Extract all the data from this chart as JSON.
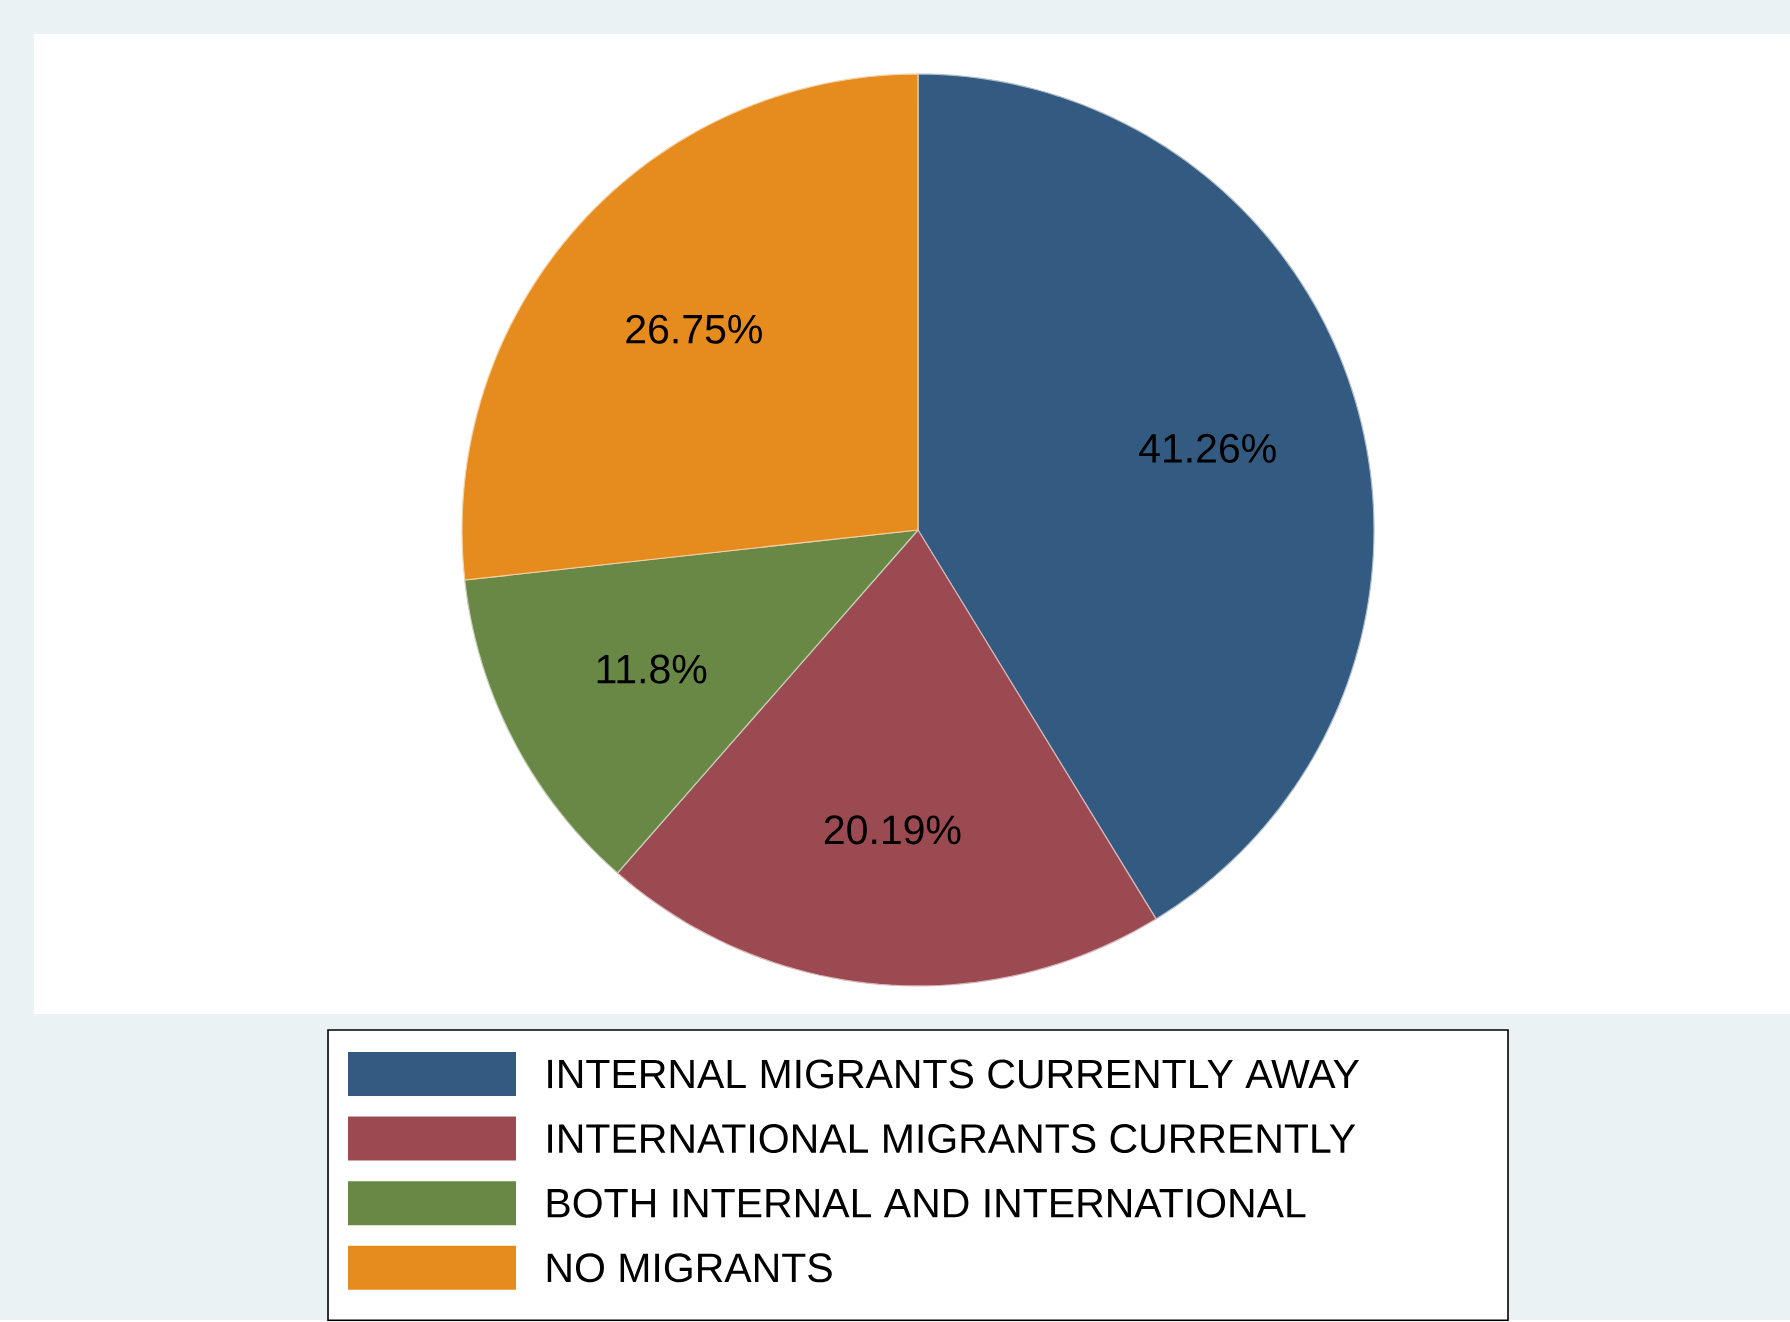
{
  "chart_data": {
    "type": "pie",
    "categories": [
      "INTERNAL MIGRANTS CURRENTLY AWAY",
      "INTERNATIONAL MIGRANTS CURRENTLY",
      "BOTH INTERNAL AND INTERNATIONAL",
      "NO MIGRANTS"
    ],
    "values": [
      41.26,
      20.19,
      11.8,
      26.75
    ],
    "value_labels": [
      "41.26%",
      "20.19%",
      "11.8%",
      "26.75%"
    ],
    "colors": [
      "#335a80",
      "#9b4a51",
      "#6a8845",
      "#e68b1d"
    ],
    "legend": "bottom"
  }
}
